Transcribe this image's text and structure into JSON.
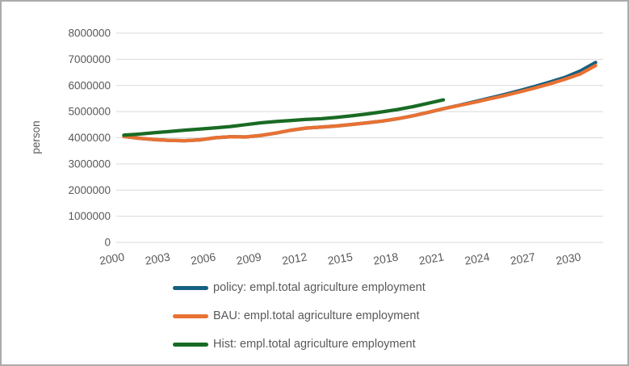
{
  "chart_data": {
    "type": "line",
    "title": "",
    "xlabel": "",
    "ylabel": "person",
    "ylim": [
      0,
      8000000
    ],
    "grid": true,
    "legend_position": "bottom-left",
    "categories": [
      2000,
      2001,
      2002,
      2003,
      2004,
      2005,
      2006,
      2007,
      2008,
      2009,
      2010,
      2011,
      2012,
      2013,
      2014,
      2015,
      2016,
      2017,
      2018,
      2019,
      2020,
      2021,
      2022,
      2023,
      2024,
      2025,
      2026,
      2027,
      2028,
      2029,
      2030,
      2031
    ],
    "x_ticks": [
      2000,
      2003,
      2006,
      2009,
      2012,
      2015,
      2018,
      2021,
      2024,
      2027,
      2030
    ],
    "y_ticks": [
      0,
      1000000,
      2000000,
      3000000,
      4000000,
      5000000,
      6000000,
      7000000,
      8000000
    ],
    "series": [
      {
        "id": "policy",
        "name": "policy: empl.total agriculture employment",
        "color": "#156082",
        "values": [
          4050000,
          3980000,
          3930000,
          3900000,
          3890000,
          3920000,
          4000000,
          4040000,
          4030000,
          4090000,
          4180000,
          4290000,
          4370000,
          4410000,
          4450000,
          4510000,
          4570000,
          4640000,
          4730000,
          4840000,
          4970000,
          5110000,
          5240000,
          5370000,
          5510000,
          5650000,
          5800000,
          5960000,
          6130000,
          6310000,
          6550000,
          6880000
        ]
      },
      {
        "id": "BAU",
        "name": "BAU: empl.total agriculture employment",
        "color": "#E97132",
        "values": [
          4050000,
          3980000,
          3930000,
          3900000,
          3890000,
          3920000,
          4000000,
          4040000,
          4030000,
          4090000,
          4180000,
          4290000,
          4370000,
          4410000,
          4450000,
          4510000,
          4570000,
          4640000,
          4730000,
          4840000,
          4970000,
          5110000,
          5230000,
          5350000,
          5480000,
          5610000,
          5750000,
          5900000,
          6060000,
          6240000,
          6440000,
          6760000
        ]
      },
      {
        "id": "Hist",
        "name": "Hist: empl.total agriculture employment",
        "color": "#196B24",
        "values": [
          4100000,
          4140000,
          4190000,
          4240000,
          4290000,
          4330000,
          4380000,
          4430000,
          4500000,
          4570000,
          4620000,
          4660000,
          4700000,
          4730000,
          4780000,
          4840000,
          4910000,
          4990000,
          5080000,
          5190000,
          5320000,
          5450000
        ]
      }
    ]
  },
  "colors": {
    "gridline": "#D9D9D9",
    "axis_text": "#595959",
    "frame_border": "#ABABAB"
  }
}
